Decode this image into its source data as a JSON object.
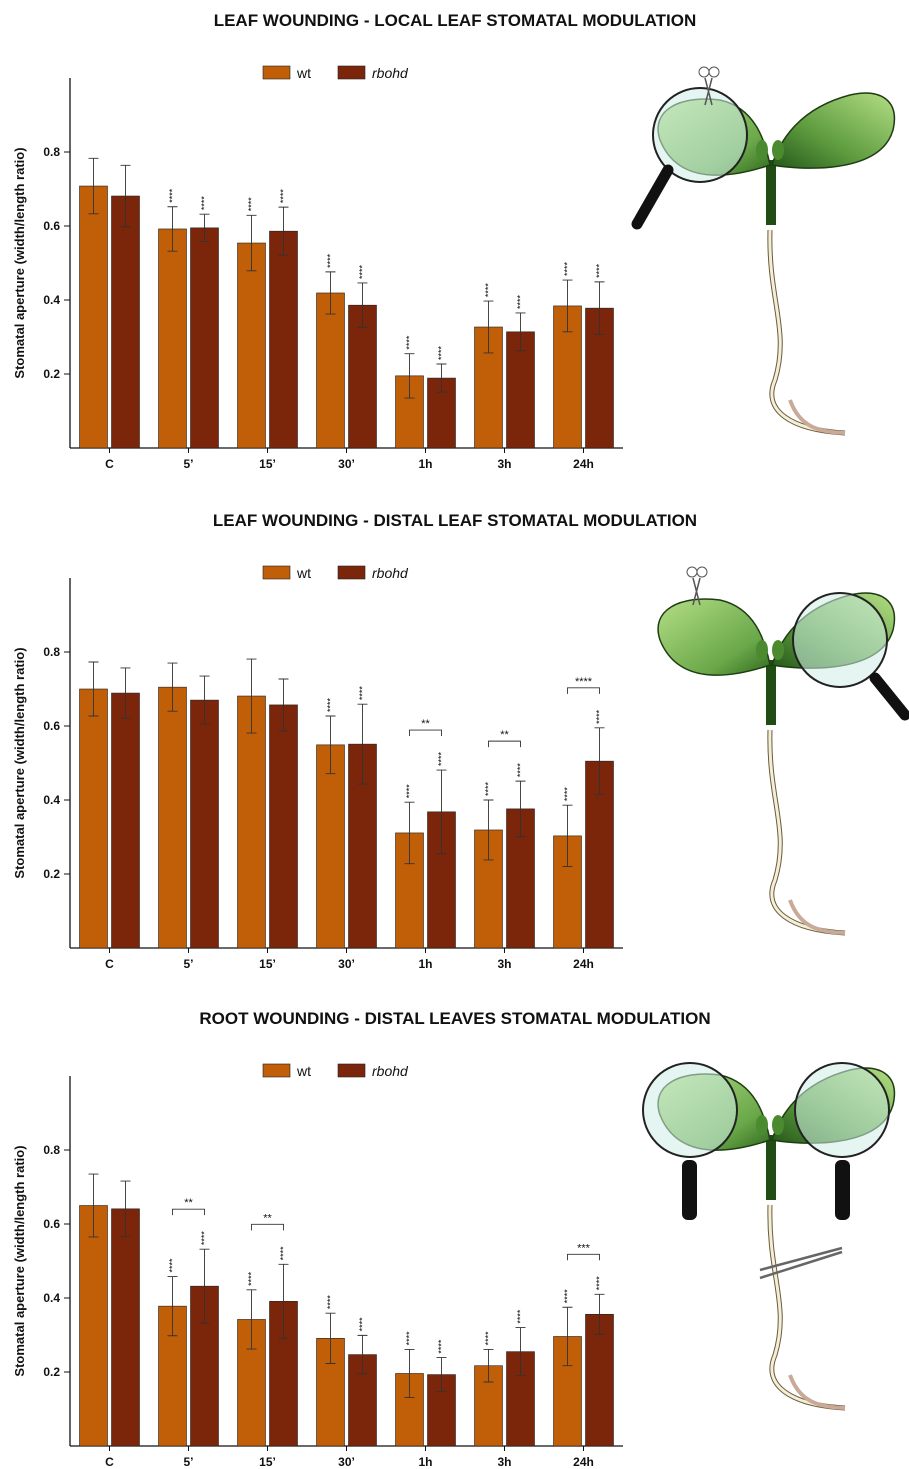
{
  "chart_data": [
    {
      "type": "bar",
      "title": "LEAF WOUNDING - LOCAL LEAF STOMATAL MODULATION",
      "y_label": "Stomatal aperture (width/length ratio)",
      "categories": [
        "C",
        "5’",
        "15’",
        "30’",
        "1h",
        "3h",
        "24h"
      ],
      "ylim": [
        0,
        1
      ],
      "yticks": [
        0.2,
        0.4,
        0.6,
        0.8
      ],
      "series": [
        {
          "name": "wt",
          "color": "#c05f08",
          "values": [
            0.708,
            0.592,
            0.554,
            0.419,
            0.195,
            0.327,
            0.384
          ],
          "errors": [
            0.075,
            0.06,
            0.075,
            0.057,
            0.06,
            0.07,
            0.07
          ],
          "labels": [
            null,
            "****",
            "****",
            "****",
            "****",
            "****",
            "****"
          ]
        },
        {
          "name": "rbohd",
          "color": "#7b250a",
          "values": [
            0.681,
            0.595,
            0.586,
            0.386,
            0.189,
            0.314,
            0.378
          ],
          "errors": [
            0.083,
            0.037,
            0.065,
            0.06,
            0.038,
            0.051,
            0.071
          ],
          "labels": [
            null,
            "****",
            "****",
            "****",
            "****",
            "****",
            "****"
          ]
        }
      ],
      "comparison_labels": [
        null,
        null,
        null,
        null,
        null,
        null,
        null
      ]
    },
    {
      "type": "bar",
      "title": "LEAF WOUNDING - DISTAL LEAF STOMATAL MODULATION",
      "y_label": "Stomatal aperture (width/length ratio)",
      "categories": [
        "C",
        "5’",
        "15’",
        "30’",
        "1h",
        "3h",
        "24h"
      ],
      "ylim": [
        0,
        1
      ],
      "yticks": [
        0.2,
        0.4,
        0.6,
        0.8
      ],
      "series": [
        {
          "name": "wt",
          "color": "#c05f08",
          "values": [
            0.7,
            0.705,
            0.681,
            0.549,
            0.311,
            0.319,
            0.303
          ],
          "errors": [
            0.073,
            0.065,
            0.1,
            0.078,
            0.083,
            0.081,
            0.083
          ],
          "labels": [
            null,
            null,
            null,
            "****",
            "****",
            "****",
            "****"
          ]
        },
        {
          "name": "rbohd",
          "color": "#7b250a",
          "values": [
            0.689,
            0.67,
            0.657,
            0.551,
            0.368,
            0.376,
            0.505
          ],
          "errors": [
            0.068,
            0.065,
            0.07,
            0.108,
            0.113,
            0.075,
            0.09
          ],
          "labels": [
            null,
            null,
            null,
            "****",
            "****",
            "****",
            "****"
          ]
        }
      ],
      "comparison_labels": [
        null,
        null,
        null,
        null,
        "**",
        "**",
        "****"
      ]
    },
    {
      "type": "bar",
      "title": "ROOT WOUNDING - DISTAL LEAVES STOMATAL MODULATION",
      "y_label": "Stomatal aperture (width/length ratio)",
      "categories": [
        "C",
        "5’",
        "15’",
        "30’",
        "1h",
        "3h",
        "24h"
      ],
      "ylim": [
        0,
        1
      ],
      "yticks": [
        0.2,
        0.4,
        0.6,
        0.8
      ],
      "series": [
        {
          "name": "wt",
          "color": "#c05f08",
          "values": [
            0.65,
            0.378,
            0.342,
            0.291,
            0.196,
            0.217,
            0.296
          ],
          "errors": [
            0.085,
            0.08,
            0.08,
            0.068,
            0.065,
            0.044,
            0.079
          ],
          "labels": [
            null,
            "****",
            "****",
            "****",
            "****",
            "****",
            "****"
          ]
        },
        {
          "name": "rbohd",
          "color": "#7b250a",
          "values": [
            0.641,
            0.432,
            0.391,
            0.247,
            0.193,
            0.255,
            0.356
          ],
          "errors": [
            0.075,
            0.1,
            0.1,
            0.052,
            0.046,
            0.065,
            0.054
          ],
          "labels": [
            null,
            "****",
            "****",
            "****",
            "****",
            "****",
            "****"
          ]
        }
      ],
      "comparison_labels": [
        null,
        "**",
        "**",
        null,
        null,
        null,
        "***"
      ]
    }
  ]
}
